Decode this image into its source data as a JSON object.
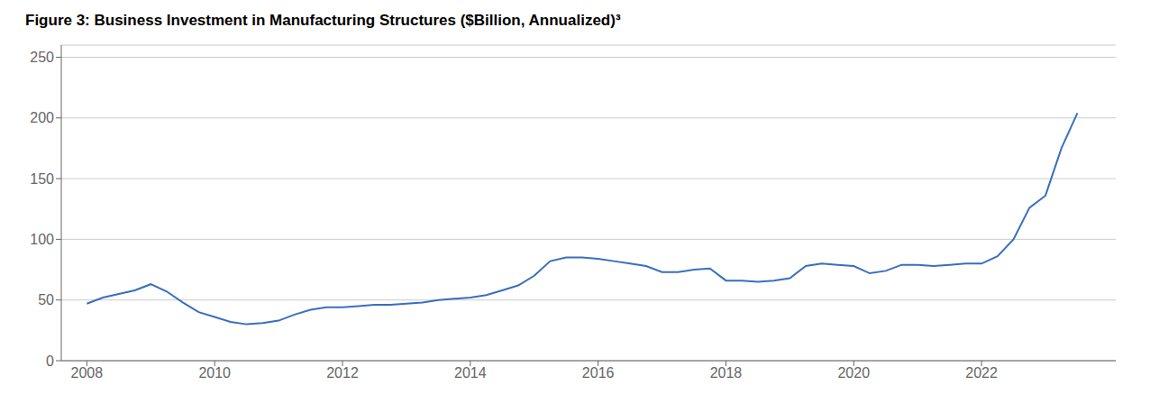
{
  "chart_data": {
    "type": "line",
    "title": "Figure 3: Business Investment in Manufacturing Structures ($Billion, Annualized)³",
    "x": [
      2008.0,
      2008.25,
      2008.5,
      2008.75,
      2009.0,
      2009.25,
      2009.5,
      2009.75,
      2010.0,
      2010.25,
      2010.5,
      2010.75,
      2011.0,
      2011.25,
      2011.5,
      2011.75,
      2012.0,
      2012.25,
      2012.5,
      2012.75,
      2013.0,
      2013.25,
      2013.5,
      2013.75,
      2014.0,
      2014.25,
      2014.5,
      2014.75,
      2015.0,
      2015.25,
      2015.5,
      2015.75,
      2016.0,
      2016.25,
      2016.5,
      2016.75,
      2017.0,
      2017.25,
      2017.5,
      2017.75,
      2018.0,
      2018.25,
      2018.5,
      2018.75,
      2019.0,
      2019.25,
      2019.5,
      2019.75,
      2020.0,
      2020.25,
      2020.5,
      2020.75,
      2021.0,
      2021.25,
      2021.5,
      2021.75,
      2022.0,
      2022.25,
      2022.5,
      2022.75,
      2023.0,
      2023.25,
      2023.5
    ],
    "values": [
      47,
      52,
      55,
      58,
      63,
      57,
      48,
      40,
      36,
      32,
      30,
      31,
      33,
      38,
      42,
      44,
      44,
      45,
      46,
      46,
      47,
      48,
      50,
      51,
      52,
      54,
      58,
      62,
      70,
      82,
      85,
      85,
      84,
      82,
      80,
      78,
      73,
      73,
      75,
      76,
      66,
      66,
      65,
      66,
      68,
      78,
      80,
      79,
      78,
      72,
      74,
      79,
      79,
      78,
      79,
      80,
      80,
      86,
      100,
      126,
      136,
      175,
      204
    ],
    "color": "#3a6ec0",
    "xlim": [
      2007.6,
      2024.1
    ],
    "ylim": [
      0,
      260
    ],
    "xticks": [
      2008,
      2010,
      2012,
      2014,
      2016,
      2018,
      2020,
      2022
    ],
    "yticks": [
      0,
      50,
      100,
      150,
      200,
      250
    ],
    "grid": true
  }
}
